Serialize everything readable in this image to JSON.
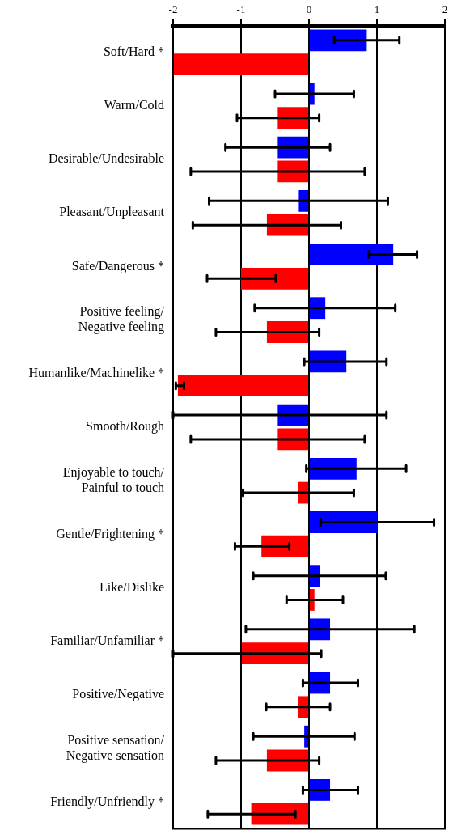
{
  "chart_data": {
    "type": "bar",
    "orientation": "horizontal",
    "categories": [
      "Soft/Hard *",
      "Warm/Cold",
      "Desirable/Undesirable",
      "Pleasant/Unpleasant",
      "Safe/Dangerous *",
      "Positive feeling/ Negative feeling",
      "Humanlike/Machinelike *",
      "Smooth/Rough",
      "Enjoyable to touch/ Painful to touch",
      "Gentle/Frightening *",
      "Like/Dislike",
      "Familiar/Unfamiliar *",
      "Positive/Negative",
      "Positive sensation/ Negative sensation",
      "Friendly/Unfriendly *"
    ],
    "series": [
      {
        "color": "#0000ff",
        "values": [
          0.85,
          0.08,
          -0.46,
          -0.15,
          1.24,
          0.24,
          0.55,
          -0.46,
          0.7,
          1.01,
          0.16,
          0.31,
          0.31,
          -0.07,
          0.31
        ],
        "errors": [
          [
            0.37,
            1.33
          ],
          [
            -0.5,
            0.66
          ],
          [
            -1.23,
            0.31
          ],
          [
            -1.47,
            1.16
          ],
          [
            0.88,
            1.59
          ],
          [
            -0.8,
            1.27
          ],
          [
            -0.07,
            1.14
          ],
          [
            -2.0,
            1.14
          ],
          [
            -0.04,
            1.43
          ],
          [
            0.17,
            1.84
          ],
          [
            -0.82,
            1.13
          ],
          [
            -0.93,
            1.55
          ],
          [
            -0.09,
            0.72
          ],
          [
            -0.82,
            0.67
          ],
          [
            -0.09,
            0.72
          ]
        ]
      },
      {
        "color": "#ff0000",
        "values": [
          -2.0,
          -0.46,
          -0.46,
          -0.62,
          -1.0,
          -0.62,
          -1.93,
          -0.46,
          -0.16,
          -0.7,
          0.08,
          -0.99,
          -0.16,
          -0.62,
          -0.85
        ],
        "errors": [
          null,
          [
            -1.06,
            0.15
          ],
          [
            -1.74,
            0.82
          ],
          [
            -1.71,
            0.47
          ],
          [
            -1.5,
            -0.49
          ],
          [
            -1.37,
            0.15
          ],
          [
            -1.96,
            -1.84
          ],
          [
            -1.74,
            0.82
          ],
          [
            -0.97,
            0.66
          ],
          [
            -1.09,
            -0.29
          ],
          [
            -0.33,
            0.5
          ],
          [
            -2.0,
            0.18
          ],
          [
            -0.63,
            0.31
          ],
          [
            -1.37,
            0.15
          ],
          [
            -1.49,
            -0.2
          ]
        ]
      }
    ],
    "xlim": [
      -2,
      2
    ],
    "xticks": [
      -2,
      -1,
      0,
      1,
      2
    ],
    "grid": "x",
    "legend": false
  }
}
